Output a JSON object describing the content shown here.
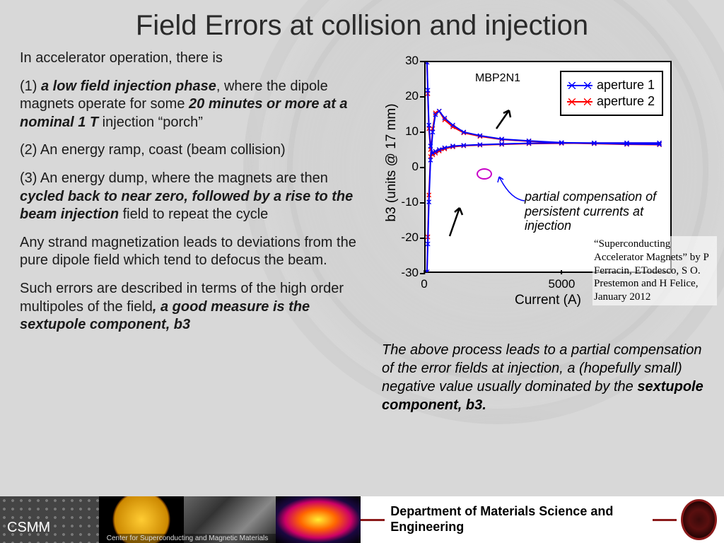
{
  "title": "Field Errors at collision and injection",
  "left": {
    "p1": "In accelerator operation, there is",
    "p2a": "(1) ",
    "p2b": "a low field injection phase",
    "p2c": ", where the dipole magnets operate for some ",
    "p2d": "20 minutes or more at a nominal 1 T",
    "p2e": " injection “porch”",
    "p3": "(2) An energy ramp, coast (beam collision)",
    "p4a": "(3) An energy dump, where the magnets are then ",
    "p4b": "cycled back to near zero, followed by a rise to the beam injection",
    "p4c": " field to repeat the cycle",
    "p5": "Any strand magnetization leads to deviations from the pure dipole field which tend to defocus the beam.",
    "p6a": "Such errors are described in terms of the high order multipoles of the field",
    "p6b": ", a good measure is the sextupole component, b3"
  },
  "chart": {
    "type": "line",
    "series_label": "MBP2N1",
    "xlabel": "Current (A)",
    "ylabel": "b3 (units @ 17 mm)",
    "xlim": [
      0,
      9000
    ],
    "ylim": [
      -30,
      30
    ],
    "xticks": [
      0,
      5000
    ],
    "yticks": [
      -30,
      -20,
      -10,
      0,
      10,
      20,
      30
    ],
    "legend": [
      "aperture 1",
      "aperture 2"
    ],
    "colors": {
      "aperture1": "#0000ff",
      "aperture2": "#ff0000",
      "marker_x": true
    },
    "annotation": "partial compensation of persistent currents at injection",
    "annotation_color": "#0000ff",
    "circle_color": "#c800c8",
    "background": "#ffffff",
    "border_color": "#000000",
    "line_width": 2,
    "marker": "x",
    "aperture1": {
      "x": [
        50,
        80,
        120,
        180,
        260,
        360,
        500,
        700,
        1000,
        1400,
        2000,
        2800,
        3800,
        5000,
        6200,
        7400,
        8600
      ],
      "y_up": [
        -30,
        -22,
        -10,
        2,
        10,
        15,
        16,
        14,
        12,
        10,
        9,
        8,
        7.5,
        7,
        6.8,
        6.6,
        6.5
      ],
      "y_down": [
        30,
        22,
        12,
        6,
        4,
        4.5,
        5,
        5.5,
        6,
        6.2,
        6.4,
        6.6,
        6.8,
        6.9,
        6.9,
        6.9,
        6.9
      ]
    },
    "aperture2": {
      "x": [
        50,
        80,
        120,
        180,
        260,
        360,
        500,
        700,
        1000,
        1400,
        2000,
        2800,
        3800,
        5000,
        6200,
        7400,
        8600
      ],
      "y_up": [
        -30,
        -20,
        -8,
        3,
        11,
        15.5,
        16,
        13.5,
        11.5,
        9.8,
        8.8,
        7.9,
        7.4,
        6.9,
        6.7,
        6.5,
        6.4
      ],
      "y_down": [
        30,
        21,
        11,
        5,
        3.5,
        4,
        4.6,
        5.2,
        5.8,
        6.1,
        6.3,
        6.5,
        6.7,
        6.8,
        6.85,
        6.85,
        6.85
      ]
    }
  },
  "citation": "“Superconducting Accelerator Magnets” by P Ferracin, ETodesco, S O. Prestemon and H Felice, January 2012",
  "right_text": {
    "a": "The above process leads to a partial compensation of the error fields at injection, a (hopefully small) negative value usually dominated by the ",
    "b": "sextupole component, b3."
  },
  "footer": {
    "csmm": "CSMM",
    "banner": "Center for Superconducting and Magnetic Materials",
    "dept": "Department of Materials Science and Engineering"
  }
}
